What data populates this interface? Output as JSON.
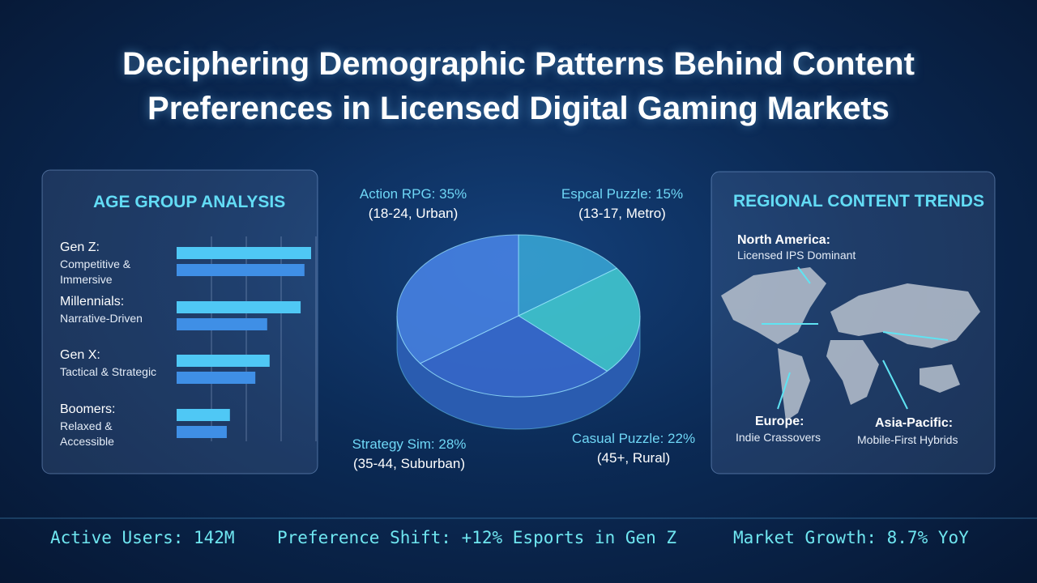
{
  "title": "Deciphering Demographic Patterns Behind Content Preferences in Licensed Digital Gaming Markets",
  "chart_data": [
    {
      "type": "bar",
      "title": "AGE GROUP ANALYSIS",
      "categories": [
        "Gen Z:",
        "Millennials:",
        "Gen X:",
        "Boomers:"
      ],
      "descriptions": [
        "Competitive & Immersive",
        "Narrative-Driven",
        "Tactical & Strategic",
        "Relaxed & Accessible"
      ],
      "series": [
        {
          "color": "#4fc8f5",
          "values": [
            3.86,
            3.56,
            2.67,
            1.53
          ]
        },
        {
          "color": "#3f8fe6",
          "values": [
            3.67,
            2.6,
            2.26,
            1.44
          ]
        }
      ],
      "xlim": [
        0,
        4
      ],
      "xticks": [
        1,
        2,
        3,
        4
      ],
      "grid": true
    },
    {
      "type": "pie",
      "labels": [
        "Espcal Puzzle: 15%",
        "Casual Puzzle: 22%",
        "Strategy Sim: 28%",
        "Action RPG: 35%"
      ],
      "details": [
        "(13-17, Metro)",
        "(45+, Rural)",
        "(35-44, Suburban)",
        "(18-24, Urban)"
      ],
      "values": [
        15,
        22,
        28,
        35
      ],
      "colors": [
        "#3aa9d8",
        "#44d0d6",
        "#3b6fd6",
        "#4a86ea"
      ]
    }
  ],
  "map": {
    "title": "REGIONAL CONTENT TRENDS",
    "callouts": [
      {
        "name": "North America:",
        "note": "Licensed IPS Dominant"
      },
      {
        "name": "Europe:",
        "note": "Indie Crassovers"
      },
      {
        "name": "Asia-Pacific:",
        "note": "Mobile-First Hybrids"
      }
    ]
  },
  "footer": [
    "Active Users: 142M",
    "Preference Shift: +12% Esports in Gen Z",
    "Market Growth: 8.7% YoY"
  ]
}
